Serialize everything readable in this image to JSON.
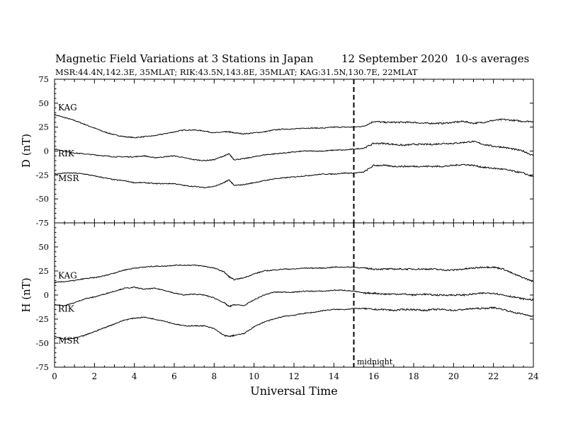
{
  "header": {
    "title": "Magnetic Field Variations at 3 Stations in Japan",
    "date": "12 September 2020",
    "averaging": "10-s averages",
    "stations_line": "MSR:44.4N,142.3E, 35MLAT;  RIK:43.5N,143.8E, 35MLAT;  KAG:31.5N,130.7E, 22MLAT"
  },
  "colors": {
    "trace": "#000000",
    "background": "#ffffff"
  },
  "chart_data": [
    {
      "type": "line",
      "panel": "top",
      "ylabel": "D (nT)",
      "xlim": [
        0,
        24
      ],
      "ylim": [
        -75,
        75
      ],
      "yticks": [
        -75,
        -50,
        -25,
        0,
        25,
        50,
        75
      ],
      "ytick_labels": [
        "-75",
        "-50",
        "-25",
        "0",
        "25",
        "50",
        "75"
      ],
      "x": [
        0,
        0.5,
        1,
        1.5,
        2,
        2.5,
        3,
        3.5,
        4,
        4.5,
        5,
        5.5,
        6,
        6.5,
        7,
        7.5,
        8,
        8.5,
        8.75,
        9,
        9.5,
        10,
        10.5,
        11,
        11.5,
        12,
        12.5,
        13,
        13.5,
        14,
        14.5,
        15,
        15.5,
        16,
        16.5,
        17,
        17.5,
        18,
        18.5,
        19,
        19.5,
        20,
        20.5,
        21,
        21.5,
        22,
        22.5,
        23,
        23.5,
        24
      ],
      "series": [
        {
          "name": "KAG",
          "values": [
            38,
            35,
            32,
            28,
            24,
            20,
            17,
            15,
            14,
            15,
            16,
            18,
            20,
            22,
            22,
            21,
            19,
            20,
            20,
            19,
            18,
            19,
            20,
            22,
            23,
            23,
            24,
            24,
            24,
            25,
            25,
            25,
            26,
            31,
            30,
            30,
            30,
            30,
            29,
            29,
            29,
            30,
            31,
            29,
            30,
            32,
            33,
            32,
            31,
            31
          ]
        },
        {
          "name": "RIK",
          "values": [
            2,
            0,
            -2,
            -3,
            -4,
            -5,
            -6,
            -6,
            -6,
            -5,
            -7,
            -6,
            -5,
            -7,
            -9,
            -10,
            -9,
            -5,
            -3,
            -9,
            -8,
            -6,
            -4,
            -3,
            -2,
            -1,
            0,
            0,
            0,
            1,
            1,
            2,
            3,
            8,
            8,
            7,
            6,
            7,
            7,
            7,
            8,
            8,
            9,
            10,
            7,
            5,
            4,
            2,
            0,
            -5
          ]
        },
        {
          "name": "MSR",
          "values": [
            -24,
            -23,
            -23,
            -24,
            -26,
            -28,
            -30,
            -31,
            -33,
            -33,
            -34,
            -34,
            -34,
            -36,
            -37,
            -38,
            -37,
            -33,
            -30,
            -36,
            -35,
            -33,
            -31,
            -29,
            -28,
            -27,
            -26,
            -25,
            -24,
            -24,
            -23,
            -23,
            -22,
            -15,
            -15,
            -16,
            -16,
            -16,
            -16,
            -16,
            -16,
            -15,
            -14,
            -15,
            -17,
            -18,
            -19,
            -21,
            -23,
            -27
          ]
        }
      ],
      "annotation": {
        "type": "dashed-vline",
        "x": 15
      }
    },
    {
      "type": "line",
      "panel": "bottom",
      "ylabel": "H (nT)",
      "xlabel": "Universal Time",
      "xlim": [
        0,
        24
      ],
      "ylim": [
        -75,
        75
      ],
      "xticks": [
        0,
        2,
        4,
        6,
        8,
        10,
        12,
        14,
        16,
        18,
        20,
        22,
        24
      ],
      "xtick_labels": [
        "0",
        "2",
        "4",
        "6",
        "8",
        "10",
        "12",
        "14",
        "16",
        "18",
        "20",
        "22",
        "24"
      ],
      "yticks": [
        -75,
        -50,
        -25,
        0,
        25,
        50
      ],
      "ytick_labels": [
        "-75",
        "-50",
        "-25",
        "0",
        "25",
        "50"
      ],
      "x": [
        0,
        0.5,
        1,
        1.5,
        2,
        2.5,
        3,
        3.5,
        4,
        4.5,
        5,
        5.5,
        6,
        6.5,
        7,
        7.5,
        8,
        8.5,
        8.75,
        9,
        9.5,
        10,
        10.5,
        11,
        11.5,
        12,
        12.5,
        13,
        13.5,
        14,
        14.5,
        15,
        15.5,
        16,
        16.5,
        17,
        17.5,
        18,
        18.5,
        19,
        19.5,
        20,
        20.5,
        21,
        21.5,
        22,
        22.5,
        23,
        23.5,
        24
      ],
      "series": [
        {
          "name": "KAG",
          "values": [
            13,
            14,
            15,
            17,
            18,
            20,
            23,
            26,
            28,
            29,
            30,
            30,
            31,
            31,
            31,
            30,
            28,
            24,
            19,
            16,
            18,
            22,
            25,
            26,
            27,
            27,
            28,
            28,
            28,
            29,
            29,
            29,
            28,
            27,
            27,
            27,
            27,
            27,
            27,
            27,
            26,
            26,
            27,
            28,
            29,
            29,
            27,
            22,
            18,
            14
          ]
        },
        {
          "name": "RIK",
          "values": [
            -10,
            -11,
            -8,
            -4,
            -2,
            1,
            4,
            7,
            8,
            6,
            7,
            5,
            2,
            0,
            1,
            0,
            -3,
            -8,
            -12,
            -10,
            -11,
            -5,
            0,
            3,
            3,
            3,
            4,
            4,
            4,
            5,
            5,
            4,
            2,
            2,
            1,
            1,
            1,
            0,
            1,
            0,
            0,
            0,
            0,
            1,
            2,
            2,
            0,
            -2,
            -4,
            -5
          ]
        },
        {
          "name": "MSR",
          "values": [
            -43,
            -46,
            -45,
            -42,
            -38,
            -34,
            -30,
            -26,
            -24,
            -23,
            -25,
            -27,
            -30,
            -32,
            -32,
            -32,
            -35,
            -42,
            -43,
            -42,
            -40,
            -33,
            -28,
            -25,
            -22,
            -21,
            -19,
            -18,
            -16,
            -15,
            -15,
            -14,
            -14,
            -15,
            -15,
            -16,
            -15,
            -15,
            -16,
            -15,
            -15,
            -16,
            -15,
            -14,
            -14,
            -13,
            -15,
            -18,
            -20,
            -22
          ]
        }
      ],
      "annotation": {
        "type": "dashed-vline",
        "x": 15,
        "label": "midnight"
      }
    }
  ]
}
